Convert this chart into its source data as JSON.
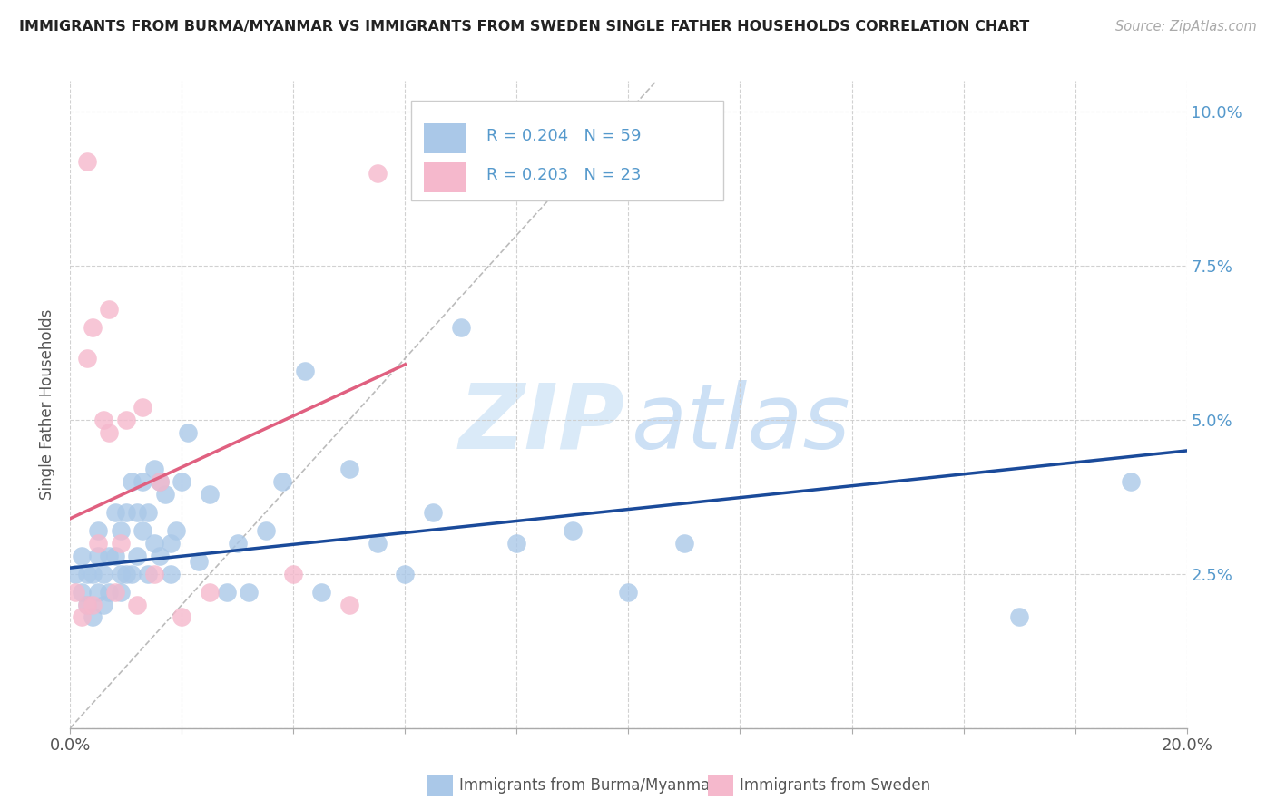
{
  "title": "IMMIGRANTS FROM BURMA/MYANMAR VS IMMIGRANTS FROM SWEDEN SINGLE FATHER HOUSEHOLDS CORRELATION CHART",
  "source": "Source: ZipAtlas.com",
  "ylabel": "Single Father Households",
  "legend_blue_label": "Immigrants from Burma/Myanmar",
  "legend_pink_label": "Immigrants from Sweden",
  "legend_blue_r": "0.204",
  "legend_blue_n": "59",
  "legend_pink_r": "0.203",
  "legend_pink_n": "23",
  "xlim": [
    0.0,
    0.2
  ],
  "ylim": [
    0.0,
    0.105
  ],
  "xticks": [
    0.0,
    0.02,
    0.04,
    0.06,
    0.08,
    0.1,
    0.12,
    0.14,
    0.16,
    0.18,
    0.2
  ],
  "xtick_labels_show": {
    "0.0": "0.0%",
    "0.20": "20.0%"
  },
  "yticks": [
    0.0,
    0.025,
    0.05,
    0.075,
    0.1
  ],
  "right_ytick_labels": [
    "",
    "2.5%",
    "5.0%",
    "7.5%",
    "10.0%"
  ],
  "blue_dot_color": "#aac8e8",
  "blue_line_color": "#1a4a9a",
  "pink_dot_color": "#f5b8cc",
  "pink_line_color": "#e06080",
  "watermark_zip_color": "#d8eaf8",
  "watermark_atlas_color": "#c8dff0",
  "blue_scatter_x": [
    0.001,
    0.002,
    0.002,
    0.003,
    0.003,
    0.004,
    0.004,
    0.005,
    0.005,
    0.005,
    0.006,
    0.006,
    0.007,
    0.007,
    0.008,
    0.008,
    0.009,
    0.009,
    0.009,
    0.01,
    0.01,
    0.011,
    0.011,
    0.012,
    0.012,
    0.013,
    0.013,
    0.014,
    0.014,
    0.015,
    0.015,
    0.016,
    0.016,
    0.017,
    0.018,
    0.018,
    0.019,
    0.02,
    0.021,
    0.023,
    0.025,
    0.028,
    0.03,
    0.032,
    0.035,
    0.038,
    0.042,
    0.045,
    0.05,
    0.055,
    0.06,
    0.065,
    0.07,
    0.08,
    0.09,
    0.1,
    0.11,
    0.17,
    0.19
  ],
  "blue_scatter_y": [
    0.025,
    0.022,
    0.028,
    0.02,
    0.025,
    0.018,
    0.025,
    0.022,
    0.028,
    0.032,
    0.02,
    0.025,
    0.022,
    0.028,
    0.028,
    0.035,
    0.022,
    0.025,
    0.032,
    0.025,
    0.035,
    0.025,
    0.04,
    0.028,
    0.035,
    0.032,
    0.04,
    0.025,
    0.035,
    0.03,
    0.042,
    0.028,
    0.04,
    0.038,
    0.025,
    0.03,
    0.032,
    0.04,
    0.048,
    0.027,
    0.038,
    0.022,
    0.03,
    0.022,
    0.032,
    0.04,
    0.058,
    0.022,
    0.042,
    0.03,
    0.025,
    0.035,
    0.065,
    0.03,
    0.032,
    0.022,
    0.03,
    0.018,
    0.04
  ],
  "pink_scatter_x": [
    0.001,
    0.002,
    0.003,
    0.003,
    0.004,
    0.004,
    0.005,
    0.006,
    0.007,
    0.007,
    0.008,
    0.009,
    0.01,
    0.012,
    0.013,
    0.015,
    0.016,
    0.02,
    0.025,
    0.04,
    0.05,
    0.055,
    0.003
  ],
  "pink_scatter_y": [
    0.022,
    0.018,
    0.02,
    0.06,
    0.065,
    0.02,
    0.03,
    0.05,
    0.048,
    0.068,
    0.022,
    0.03,
    0.05,
    0.02,
    0.052,
    0.025,
    0.04,
    0.018,
    0.022,
    0.025,
    0.02,
    0.09,
    0.092
  ],
  "blue_trend_x": [
    0.0,
    0.2
  ],
  "blue_trend_y": [
    0.026,
    0.045
  ],
  "pink_trend_x": [
    0.0,
    0.06
  ],
  "pink_trend_y": [
    0.034,
    0.059
  ],
  "ref_line_x": [
    0.0,
    0.105
  ],
  "ref_line_y": [
    0.0,
    0.105
  ]
}
